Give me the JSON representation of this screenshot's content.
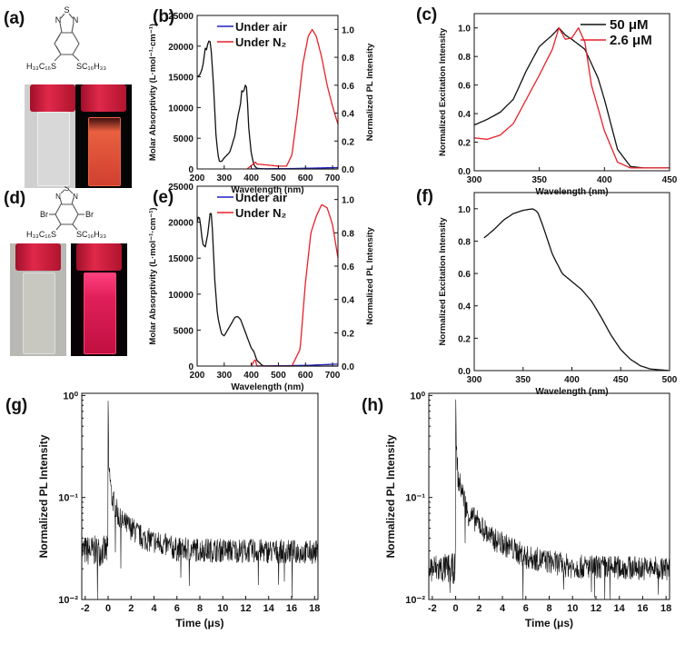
{
  "panels": {
    "a": {
      "label": "(a)",
      "s": "S",
      "n1": "N",
      "n2": "N",
      "sub_left": "H₃₃C₁₆S",
      "sub_right": "SC₁₆H₃₃"
    },
    "d": {
      "label": "(d)",
      "s": "S",
      "n1": "N",
      "n2": "N",
      "br1": "Br",
      "br2": "Br",
      "sub_left": "H₃₃C₁₆S",
      "sub_right": "SC₁₆H₃₃"
    }
  },
  "colors": {
    "black": "#111111",
    "red": "#e8202a",
    "blue": "#2020c0"
  },
  "chart_data": [
    {
      "id": "b",
      "panel_label": "(b)",
      "type": "line",
      "xlabel": "Wavelength (nm)",
      "ylabel": "Molar Absorptivity (L·mol⁻¹·cm⁻¹)",
      "y2label": "Normalized PL Intensity",
      "xlim": [
        200,
        720
      ],
      "ylim": [
        0,
        25000
      ],
      "y2lim": [
        0,
        1.1
      ],
      "xticks": [
        200,
        300,
        400,
        500,
        600,
        700
      ],
      "yticks": [
        0,
        5000,
        10000,
        15000,
        20000,
        25000
      ],
      "y2ticks": [
        0.0,
        0.2,
        0.4,
        0.6,
        0.8,
        1.0
      ],
      "legend": {
        "position": "top-left",
        "entries": [
          {
            "name": "Under air",
            "color": "#2020c0"
          },
          {
            "name": "Under N₂",
            "color": "#e8202a"
          }
        ]
      },
      "series": [
        {
          "name": "Absorption",
          "axis": "y",
          "color": "#111111",
          "points": [
            [
              200,
              15000
            ],
            [
              210,
              15300
            ],
            [
              220,
              16500
            ],
            [
              230,
              19700
            ],
            [
              235,
              19400
            ],
            [
              240,
              20500
            ],
            [
              245,
              21000
            ],
            [
              250,
              20500
            ],
            [
              260,
              14000
            ],
            [
              270,
              5000
            ],
            [
              280,
              1300
            ],
            [
              290,
              1200
            ],
            [
              300,
              1800
            ],
            [
              320,
              2700
            ],
            [
              340,
              5500
            ],
            [
              350,
              8500
            ],
            [
              360,
              10500
            ],
            [
              365,
              12900
            ],
            [
              370,
              12500
            ],
            [
              375,
              13000
            ],
            [
              380,
              14200
            ],
            [
              385,
              12000
            ],
            [
              390,
              7000
            ],
            [
              400,
              2500
            ],
            [
              410,
              600
            ],
            [
              420,
              100
            ],
            [
              450,
              0
            ],
            [
              720,
              0
            ]
          ]
        },
        {
          "name": "Under air",
          "axis": "y2",
          "color": "#2020c0",
          "points": [
            [
              400,
              0
            ],
            [
              550,
              0.003
            ],
            [
              720,
              0.01
            ]
          ]
        },
        {
          "name": "Under N₂",
          "axis": "y2",
          "color": "#e8202a",
          "points": [
            [
              385,
              0
            ],
            [
              410,
              0.04
            ],
            [
              415,
              0.05
            ],
            [
              420,
              0.035
            ],
            [
              450,
              0.03
            ],
            [
              500,
              0.02
            ],
            [
              530,
              0.02
            ],
            [
              550,
              0.1
            ],
            [
              570,
              0.4
            ],
            [
              590,
              0.75
            ],
            [
              610,
              0.95
            ],
            [
              625,
              1.0
            ],
            [
              640,
              0.95
            ],
            [
              660,
              0.8
            ],
            [
              680,
              0.6
            ],
            [
              700,
              0.45
            ],
            [
              720,
              0.32
            ]
          ]
        }
      ]
    },
    {
      "id": "c",
      "panel_label": "(c)",
      "type": "line",
      "xlabel": "Wavelength (nm)",
      "ylabel": "Normalized Excitation Intensity",
      "xlim": [
        300,
        450
      ],
      "ylim": [
        0,
        1.1
      ],
      "xticks": [
        300,
        350,
        400,
        450
      ],
      "yticks": [
        0.0,
        0.2,
        0.4,
        0.6,
        0.8,
        1.0
      ],
      "legend": {
        "position": "top-right",
        "entries": [
          {
            "name": "50 μM",
            "color": "#111111"
          },
          {
            "name": "2.6 μM",
            "color": "#e8202a"
          }
        ]
      },
      "series": [
        {
          "name": "50 μM",
          "axis": "y",
          "color": "#111111",
          "points": [
            [
              300,
              0.32
            ],
            [
              310,
              0.36
            ],
            [
              320,
              0.41
            ],
            [
              330,
              0.5
            ],
            [
              340,
              0.7
            ],
            [
              350,
              0.87
            ],
            [
              360,
              0.95
            ],
            [
              365,
              1.0
            ],
            [
              370,
              0.95
            ],
            [
              375,
              0.92
            ],
            [
              385,
              0.85
            ],
            [
              395,
              0.65
            ],
            [
              400,
              0.5
            ],
            [
              410,
              0.15
            ],
            [
              420,
              0.03
            ],
            [
              430,
              0.02
            ],
            [
              450,
              0.02
            ]
          ]
        },
        {
          "name": "2.6 μM",
          "axis": "y",
          "color": "#e8202a",
          "points": [
            [
              300,
              0.23
            ],
            [
              310,
              0.22
            ],
            [
              320,
              0.25
            ],
            [
              330,
              0.33
            ],
            [
              340,
              0.5
            ],
            [
              350,
              0.67
            ],
            [
              360,
              0.85
            ],
            [
              365,
              1.0
            ],
            [
              370,
              0.92
            ],
            [
              375,
              0.93
            ],
            [
              380,
              1.0
            ],
            [
              385,
              0.9
            ],
            [
              390,
              0.6
            ],
            [
              400,
              0.28
            ],
            [
              410,
              0.06
            ],
            [
              420,
              0.02
            ],
            [
              450,
              0.02
            ]
          ]
        }
      ]
    },
    {
      "id": "e",
      "panel_label": "(e)",
      "type": "line",
      "xlabel": "Wavelength (nm)",
      "ylabel": "Molar Absorptivity (L·mol⁻¹·cm⁻¹)",
      "y2label": "Normalized PL Intensity",
      "xlim": [
        200,
        720
      ],
      "ylim": [
        0,
        25000
      ],
      "y2lim": [
        0,
        1.08
      ],
      "xticks": [
        200,
        300,
        400,
        500,
        600,
        700
      ],
      "yticks": [
        0,
        5000,
        10000,
        15000,
        20000,
        25000
      ],
      "y2ticks": [
        0.0,
        0.2,
        0.4,
        0.6,
        0.8,
        1.0
      ],
      "legend": {
        "position": "top-left",
        "entries": [
          {
            "name": "Under air",
            "color": "#2020c0"
          },
          {
            "name": "Under N₂",
            "color": "#e8202a"
          }
        ]
      },
      "series": [
        {
          "name": "Absorption",
          "axis": "y",
          "color": "#111111",
          "points": [
            [
              200,
              20000
            ],
            [
              205,
              20800
            ],
            [
              210,
              20500
            ],
            [
              220,
              17000
            ],
            [
              230,
              16500
            ],
            [
              240,
              18500
            ],
            [
              250,
              22000
            ],
            [
              255,
              20000
            ],
            [
              265,
              12000
            ],
            [
              275,
              7000
            ],
            [
              290,
              4500
            ],
            [
              300,
              4200
            ],
            [
              320,
              5500
            ],
            [
              340,
              6800
            ],
            [
              350,
              6900
            ],
            [
              360,
              6500
            ],
            [
              380,
              4500
            ],
            [
              400,
              2500
            ],
            [
              410,
              2000
            ],
            [
              420,
              800
            ],
            [
              440,
              100
            ],
            [
              450,
              0
            ],
            [
              720,
              0
            ]
          ]
        },
        {
          "name": "Under air",
          "axis": "y2",
          "color": "#2020c0",
          "points": [
            [
              420,
              0
            ],
            [
              600,
              0.004
            ],
            [
              720,
              0.012
            ]
          ]
        },
        {
          "name": "Under N₂",
          "axis": "y2",
          "color": "#e8202a",
          "points": [
            [
              400,
              0
            ],
            [
              410,
              0.03
            ],
            [
              415,
              0.04
            ],
            [
              420,
              0
            ],
            [
              550,
              0
            ],
            [
              580,
              0.1
            ],
            [
              600,
              0.5
            ],
            [
              620,
              0.8
            ],
            [
              640,
              0.9
            ],
            [
              660,
              0.97
            ],
            [
              680,
              0.95
            ],
            [
              700,
              0.85
            ],
            [
              720,
              0.65
            ]
          ]
        }
      ]
    },
    {
      "id": "f",
      "panel_label": "(f)",
      "type": "line",
      "xlabel": "Wavelength (nm)",
      "ylabel": "Normalized Excitation Intensity",
      "xlim": [
        300,
        500
      ],
      "ylim": [
        0,
        1.1
      ],
      "xticks": [
        300,
        350,
        400,
        450,
        500
      ],
      "yticks": [
        0.0,
        0.2,
        0.4,
        0.6,
        0.8,
        1.0
      ],
      "series": [
        {
          "name": "Excitation",
          "axis": "y",
          "color": "#111111",
          "points": [
            [
              310,
              0.82
            ],
            [
              320,
              0.87
            ],
            [
              330,
              0.93
            ],
            [
              340,
              0.97
            ],
            [
              350,
              0.99
            ],
            [
              360,
              1.0
            ],
            [
              365,
              0.98
            ],
            [
              370,
              0.9
            ],
            [
              380,
              0.72
            ],
            [
              390,
              0.6
            ],
            [
              400,
              0.55
            ],
            [
              410,
              0.5
            ],
            [
              420,
              0.43
            ],
            [
              430,
              0.33
            ],
            [
              440,
              0.22
            ],
            [
              450,
              0.13
            ],
            [
              460,
              0.07
            ],
            [
              470,
              0.03
            ],
            [
              480,
              0.01
            ],
            [
              500,
              0
            ]
          ]
        }
      ]
    },
    {
      "id": "g",
      "panel_label": "(g)",
      "type": "line",
      "yscale": "log",
      "xlabel": "Time (μs)",
      "ylabel": "Normalized PL Intensity",
      "xlim": [
        -2.3,
        18.3
      ],
      "ylim": [
        0.01,
        1.05
      ],
      "xticks": [
        -2,
        0,
        2,
        4,
        6,
        8,
        10,
        12,
        14,
        16,
        18
      ],
      "yticks": [
        1,
        0.1,
        0.01
      ],
      "ytick_labels": [
        "10⁰",
        "10⁻¹",
        "10⁻²"
      ],
      "series": [
        {
          "name": "PL decay",
          "axis": "y",
          "color": "#111111",
          "noisy": true,
          "points": [
            [
              -2.3,
              0.03
            ],
            [
              -0.02,
              0.03
            ],
            [
              0,
              1.0
            ],
            [
              0.05,
              0.2
            ],
            [
              0.3,
              0.1
            ],
            [
              1,
              0.06
            ],
            [
              3,
              0.04
            ],
            [
              6,
              0.031
            ],
            [
              18.3,
              0.029
            ]
          ]
        }
      ]
    },
    {
      "id": "h",
      "panel_label": "(h)",
      "type": "line",
      "yscale": "log",
      "xlabel": "Time (μs)",
      "ylabel": "Normalized PL Intensity",
      "xlim": [
        -2.3,
        18.3
      ],
      "ylim": [
        0.01,
        1.05
      ],
      "xticks": [
        -2,
        0,
        2,
        4,
        6,
        8,
        10,
        12,
        14,
        16,
        18
      ],
      "yticks": [
        1,
        0.1,
        0.01
      ],
      "ytick_labels": [
        "10⁰",
        "10⁻¹",
        "10⁻²"
      ],
      "series": [
        {
          "name": "PL decay",
          "axis": "y",
          "color": "#111111",
          "noisy": true,
          "points": [
            [
              -2.3,
              0.02
            ],
            [
              -0.02,
              0.02
            ],
            [
              0,
              1.0
            ],
            [
              0.05,
              0.3
            ],
            [
              0.2,
              0.15
            ],
            [
              1,
              0.07
            ],
            [
              3,
              0.04
            ],
            [
              6,
              0.026
            ],
            [
              10,
              0.021
            ],
            [
              18.3,
              0.02
            ]
          ]
        }
      ]
    }
  ]
}
